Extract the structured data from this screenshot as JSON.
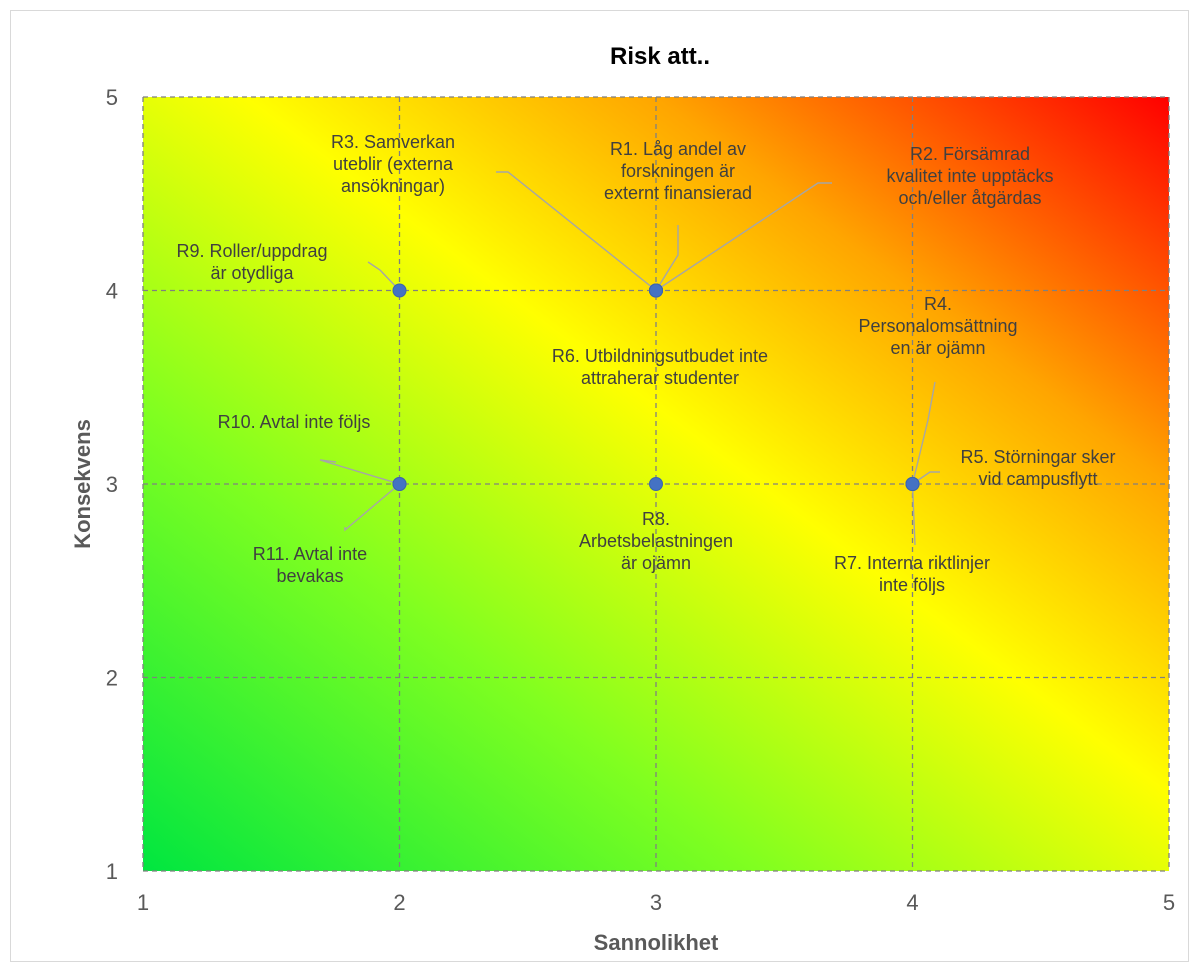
{
  "chart_data": {
    "type": "scatter",
    "title": "Risk att..",
    "xlabel": "Sannolikhet",
    "ylabel": "Konsekvens",
    "xlim": [
      1,
      5
    ],
    "ylim": [
      1,
      5
    ],
    "x_ticks": [
      "1",
      "2",
      "3",
      "4",
      "5"
    ],
    "y_ticks": [
      "1",
      "2",
      "3",
      "4",
      "5"
    ],
    "grid": true,
    "background": "gradient green (low risk, bottom-left) to yellow to red (high risk, top-right)",
    "colors": {
      "green": "#00e640",
      "yellow": "#ffff00",
      "orange": "#ffa500",
      "red": "#ff0000",
      "marker": "#4472c4",
      "grid": "#808080",
      "leader": "#a6a6a6"
    },
    "points": [
      {
        "id": "R1",
        "x": 3,
        "y": 4,
        "label": [
          "R1. Låg andel av",
          "forskningen är",
          "externt finansierad"
        ]
      },
      {
        "id": "R2",
        "x": 3,
        "y": 4,
        "label": [
          "R2. Försämrad",
          "kvalitet inte upptäcks",
          "och/eller åtgärdas"
        ]
      },
      {
        "id": "R3",
        "x": 3,
        "y": 4,
        "label": [
          "R3. Samverkan",
          "uteblir (externa",
          "ansökningar)"
        ]
      },
      {
        "id": "R4",
        "x": 4,
        "y": 3,
        "label": [
          "R4.",
          "Personalomsättning",
          "en är ojämn"
        ]
      },
      {
        "id": "R5",
        "x": 4,
        "y": 3,
        "label": [
          "R5. Störningar sker",
          "vid campusflytt"
        ]
      },
      {
        "id": "R6",
        "x": 3,
        "y": 4,
        "label": [
          "R6. Utbildningsutbudet inte",
          "attraherar studenter"
        ]
      },
      {
        "id": "R7",
        "x": 4,
        "y": 3,
        "label": [
          "R7. Interna riktlinjer",
          "inte följs"
        ]
      },
      {
        "id": "R8",
        "x": 3,
        "y": 3,
        "label": [
          "R8.",
          "Arbetsbelastningen",
          "är ojämn"
        ]
      },
      {
        "id": "R9",
        "x": 2,
        "y": 4,
        "label": [
          "R9. Roller/uppdrag",
          "är otydliga"
        ]
      },
      {
        "id": "R10",
        "x": 2,
        "y": 3,
        "label": [
          "R10. Avtal inte följs"
        ]
      },
      {
        "id": "R11",
        "x": 2,
        "y": 3,
        "label": [
          "R11. Avtal inte",
          "bevakas"
        ]
      }
    ]
  }
}
